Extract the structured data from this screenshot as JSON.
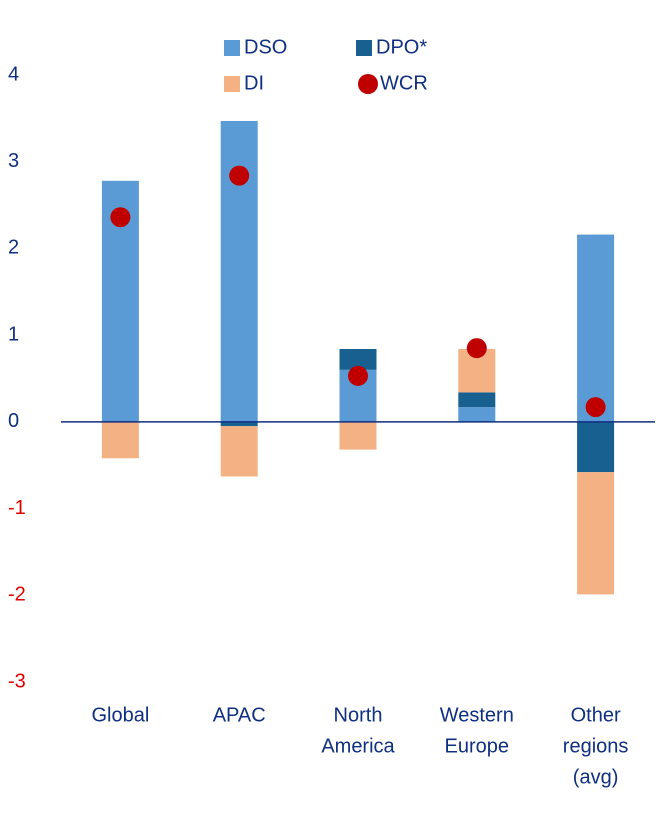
{
  "chart_data": {
    "type": "bar",
    "stacked": true,
    "categories": [
      [
        "Global"
      ],
      [
        "APAC"
      ],
      [
        "North",
        "America"
      ],
      [
        "Western",
        "Europe"
      ],
      [
        "Other",
        "regions",
        "(avg)"
      ]
    ],
    "series": [
      {
        "name": "DSO",
        "type": "bar",
        "color": "#5b9bd5",
        "values": [
          2.78,
          3.47,
          0.6,
          0.17,
          2.16
        ]
      },
      {
        "name": "DPO*",
        "type": "bar",
        "color": "#17608f",
        "values": [
          0,
          -0.05,
          0.24,
          0.17,
          -0.58
        ]
      },
      {
        "name": "DI",
        "type": "bar",
        "color": "#f4b183",
        "values": [
          -0.42,
          -0.58,
          -0.32,
          0.5,
          -1.41
        ]
      },
      {
        "name": "WCR",
        "type": "scatter",
        "color": "#c00000",
        "values": [
          2.36,
          2.84,
          0.53,
          0.85,
          0.17
        ]
      }
    ],
    "ylim": [
      -3,
      4
    ],
    "yticks": [
      -3,
      -2,
      -1,
      0,
      1,
      2,
      3,
      4
    ],
    "tick_color": "#0f2f80",
    "negative_tick_color": "#e00000",
    "zero_line_color": "#0f2f80",
    "grid": false
  }
}
